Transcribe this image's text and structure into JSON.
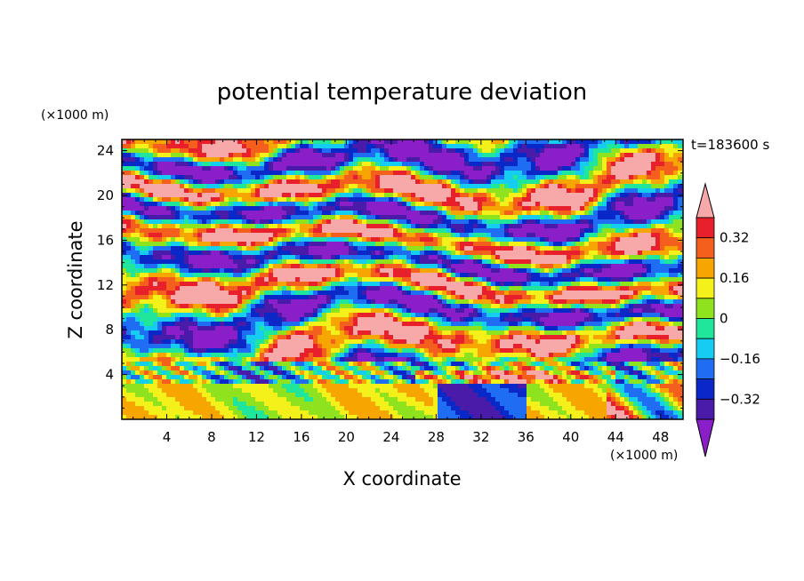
{
  "chart_data": {
    "type": "heatmap",
    "title": "potential temperature deviation",
    "time_label": "t=183600 s",
    "xlabel": "X coordinate",
    "ylabel": "Z coordinate",
    "x_unit": "(×1000 m)",
    "y_unit": "(×1000 m)",
    "xlim": [
      0,
      50
    ],
    "ylim": [
      0,
      25
    ],
    "x_ticks": [
      "4",
      "8",
      "12",
      "16",
      "20",
      "24",
      "28",
      "32",
      "36",
      "40",
      "44",
      "48"
    ],
    "y_ticks": [
      "4",
      "8",
      "12",
      "16",
      "20",
      "24"
    ],
    "x_tick_values": [
      4,
      8,
      12,
      16,
      20,
      24,
      28,
      32,
      36,
      40,
      44,
      48
    ],
    "y_tick_values": [
      4,
      8,
      12,
      16,
      20,
      24
    ],
    "colorbar": {
      "labels": [
        "0.32",
        "0.16",
        "0",
        "−0.16",
        "−0.32"
      ],
      "label_values": [
        0.32,
        0.16,
        0,
        -0.16,
        -0.32
      ],
      "levels": [
        -0.4,
        -0.32,
        -0.24,
        -0.16,
        -0.08,
        0,
        0.08,
        0.16,
        0.24,
        0.32,
        0.4
      ],
      "colors": [
        "#8a1ec8",
        "#4a1aa8",
        "#0a28c8",
        "#1f6df2",
        "#15cdf0",
        "#20e69c",
        "#8ee21e",
        "#f4f01a",
        "#f7a500",
        "#f45f1e",
        "#e8202c",
        "#f7a8a8"
      ],
      "extend": "both"
    }
  }
}
